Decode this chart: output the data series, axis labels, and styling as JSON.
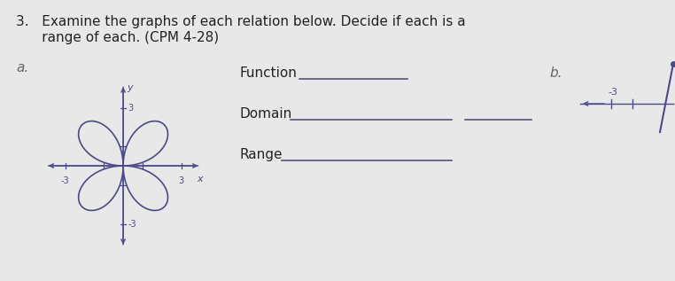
{
  "bg_color": "#e8e8e8",
  "title_line1": "3.   Examine the graphs of each relation below. Decide if each is a",
  "title_line2": "      range of each. (CPM 4-28)",
  "label_a": "a.",
  "label_b": "b.",
  "axis_color": "#4a4a8a",
  "petal_color": "#4a4a8a",
  "text_dark": "#222222",
  "text_label": "#666666",
  "function_label": "Function",
  "domain_label": "Domain",
  "range_label": "Range",
  "font_size_title": 11,
  "font_size_body": 11,
  "font_size_axis": 8
}
